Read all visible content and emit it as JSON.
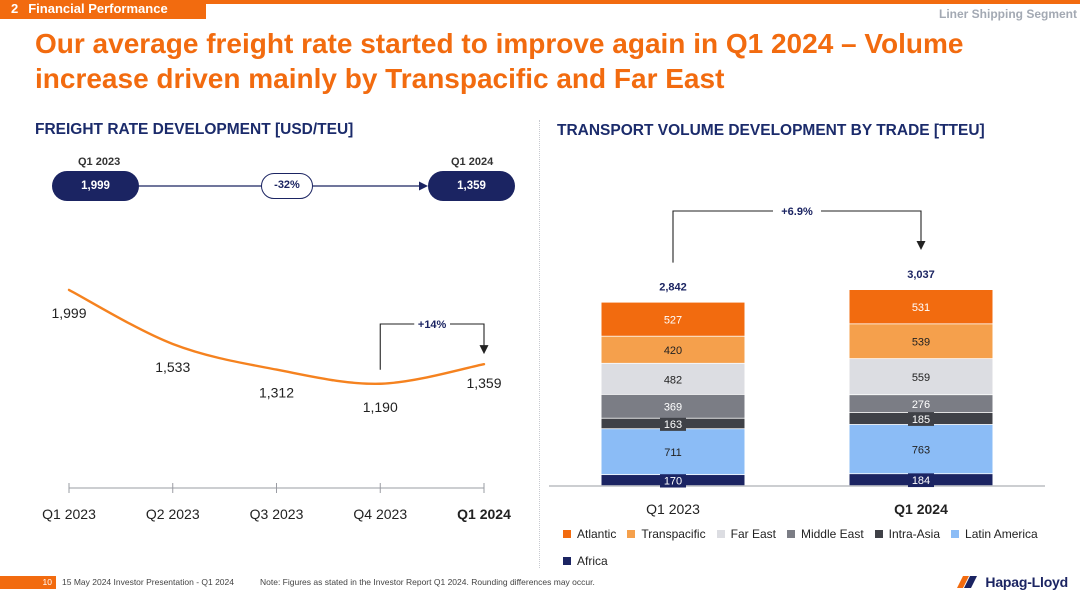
{
  "header": {
    "section_number": "2",
    "section_title": "Financial Performance",
    "segment": "Liner Shipping Segment",
    "headline": "Our average freight rate started to improve again in Q1 2024 – Volume increase driven mainly by Transpacific and Far East"
  },
  "left_panel": {
    "title": "FREIGHT RATE DEVELOPMENT [USD/TEU]",
    "start_period": "Q1 2023",
    "start_value": "1,999",
    "change": "-32%",
    "end_period": "Q1 2024",
    "end_value": "1,359",
    "qoq_change": "+14%"
  },
  "right_panel": {
    "title": "TRANSPORT VOLUME DEVELOPMENT BY TRADE [TTEU]",
    "change": "+6.9%"
  },
  "chart_data": [
    {
      "type": "line",
      "title": "FREIGHT RATE DEVELOPMENT [USD/TEU]",
      "categories": [
        "Q1 2023",
        "Q2 2023",
        "Q3 2023",
        "Q4 2023",
        "Q1 2024"
      ],
      "values": [
        1999,
        1533,
        1312,
        1190,
        1359
      ],
      "value_labels": [
        "1,999",
        "1,533",
        "1,312",
        "1,190",
        "1,359"
      ],
      "ylim": [
        1050,
        2050
      ],
      "grid": false,
      "line_color": "#f5821f",
      "bold_category": "Q1 2024"
    },
    {
      "type": "bar",
      "stacked": true,
      "title": "TRANSPORT VOLUME DEVELOPMENT BY TRADE [TTEU]",
      "categories": [
        "Q1 2023",
        "Q1 2024"
      ],
      "totals": [
        2842,
        3037
      ],
      "total_labels": [
        "2,842",
        "3,037"
      ],
      "series": [
        {
          "name": "Africa",
          "color": "#1b2462",
          "values": [
            170,
            184
          ],
          "labels": [
            "170",
            "184"
          ]
        },
        {
          "name": "Latin America",
          "color": "#8bbcf6",
          "values": [
            711,
            763
          ],
          "labels": [
            "711",
            "763"
          ]
        },
        {
          "name": "Intra-Asia",
          "color": "#3f4147",
          "values": [
            163,
            185
          ],
          "labels": [
            "163",
            "185"
          ]
        },
        {
          "name": "Middle East",
          "color": "#7b7d85",
          "values": [
            369,
            276
          ],
          "labels": [
            "369",
            "276"
          ]
        },
        {
          "name": "Far East",
          "color": "#dcdde2",
          "values": [
            482,
            559
          ],
          "labels": [
            "482",
            "559"
          ]
        },
        {
          "name": "Transpacific",
          "color": "#f5a04c",
          "values": [
            420,
            539
          ],
          "labels": [
            "420",
            "539"
          ]
        },
        {
          "name": "Atlantic",
          "color": "#f26b0f",
          "values": [
            527,
            531
          ],
          "labels": [
            "527",
            "531"
          ]
        }
      ],
      "legend_order": [
        "Atlantic",
        "Transpacific",
        "Far East",
        "Middle East",
        "Intra-Asia",
        "Latin America",
        "Africa"
      ],
      "legend_position": "bottom",
      "bold_category": "Q1 2024"
    }
  ],
  "footer": {
    "page": "10",
    "meta": "15 May 2024   Investor Presentation - Q1 2024",
    "note": "Note: Figures as stated in the Investor Report Q1 2024. Rounding differences may occur.",
    "logo_text": "Hapag-Lloyd"
  }
}
